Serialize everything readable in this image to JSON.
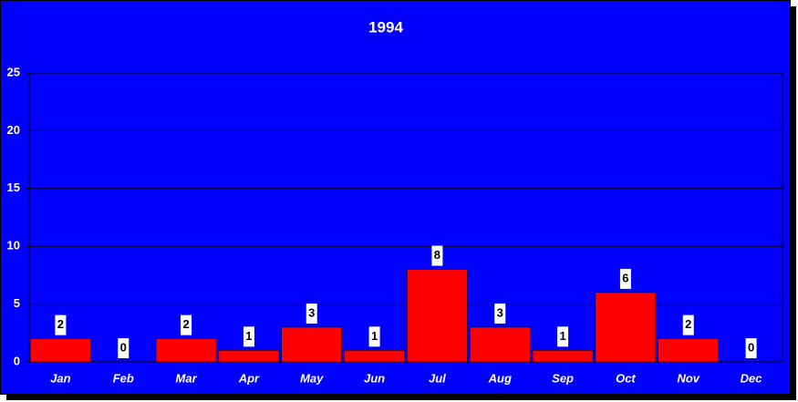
{
  "chart_data": {
    "type": "bar",
    "title": "1994",
    "categories": [
      "Jan",
      "Feb",
      "Mar",
      "Apr",
      "May",
      "Jun",
      "Jul",
      "Aug",
      "Sep",
      "Oct",
      "Nov",
      "Dec"
    ],
    "values": [
      2,
      0,
      2,
      1,
      3,
      1,
      8,
      3,
      1,
      6,
      2,
      0
    ],
    "color": "#ff0000",
    "background": "#0000ff",
    "ylim": [
      0,
      25
    ],
    "yticks": [
      0,
      5,
      10,
      15,
      20,
      25
    ],
    "grid": true
  }
}
